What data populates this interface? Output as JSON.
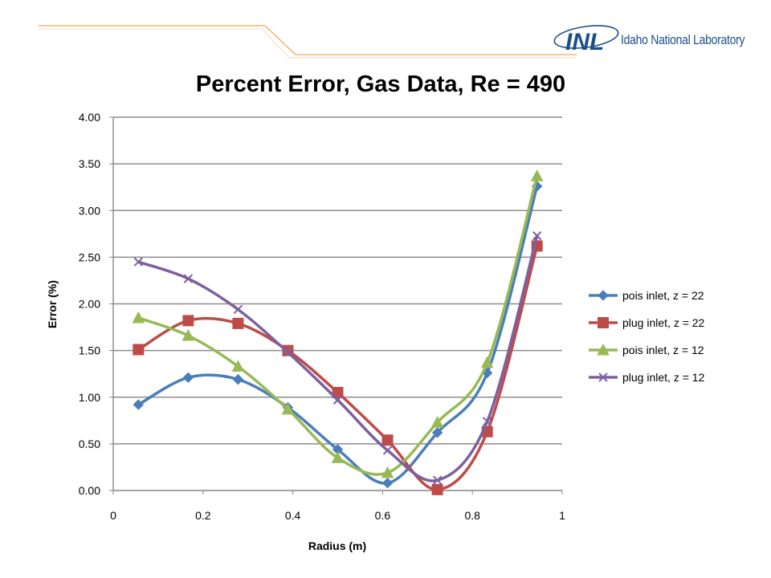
{
  "header": {
    "logo_text": "Idaho National Laboratory",
    "logo_mark_text": "INL",
    "accent_color": "#f5a55a",
    "brand_color": "#1b4f8c"
  },
  "chart_data": {
    "type": "line",
    "title": "Percent Error, Gas Data, Re = 490",
    "xlabel": "Radius (m)",
    "ylabel": "Error (%)",
    "xlim": [
      0,
      1
    ],
    "ylim": [
      0,
      4
    ],
    "x_ticks": [
      "0",
      "0.2",
      "0.4",
      "0.6",
      "0.8",
      "1"
    ],
    "y_ticks": [
      "0.00",
      "0.50",
      "1.00",
      "1.50",
      "2.00",
      "2.50",
      "3.00",
      "3.50",
      "4.00"
    ],
    "grid": "horizontal",
    "legend_position": "right",
    "x": [
      0.056,
      0.167,
      0.278,
      0.389,
      0.5,
      0.611,
      0.722,
      0.833,
      0.944
    ],
    "series": [
      {
        "name": "pois inlet, z = 22",
        "color": "#4a7ebb",
        "marker": "diamond",
        "values": [
          0.92,
          1.21,
          1.19,
          0.89,
          0.44,
          0.08,
          0.62,
          1.26,
          3.26
        ]
      },
      {
        "name": "plug inlet, z = 22",
        "color": "#be4b48",
        "marker": "square",
        "values": [
          1.51,
          1.82,
          1.79,
          1.5,
          1.05,
          0.54,
          0.01,
          0.63,
          2.62
        ]
      },
      {
        "name": "pois inlet, z = 12",
        "color": "#98b954",
        "marker": "triangle",
        "values": [
          1.85,
          1.66,
          1.33,
          0.87,
          0.35,
          0.19,
          0.73,
          1.37,
          3.37
        ]
      },
      {
        "name": "plug inlet, z = 12",
        "color": "#7d60a0",
        "marker": "x",
        "values": [
          2.45,
          2.27,
          1.94,
          1.48,
          0.97,
          0.43,
          0.11,
          0.74,
          2.73
        ]
      }
    ]
  }
}
